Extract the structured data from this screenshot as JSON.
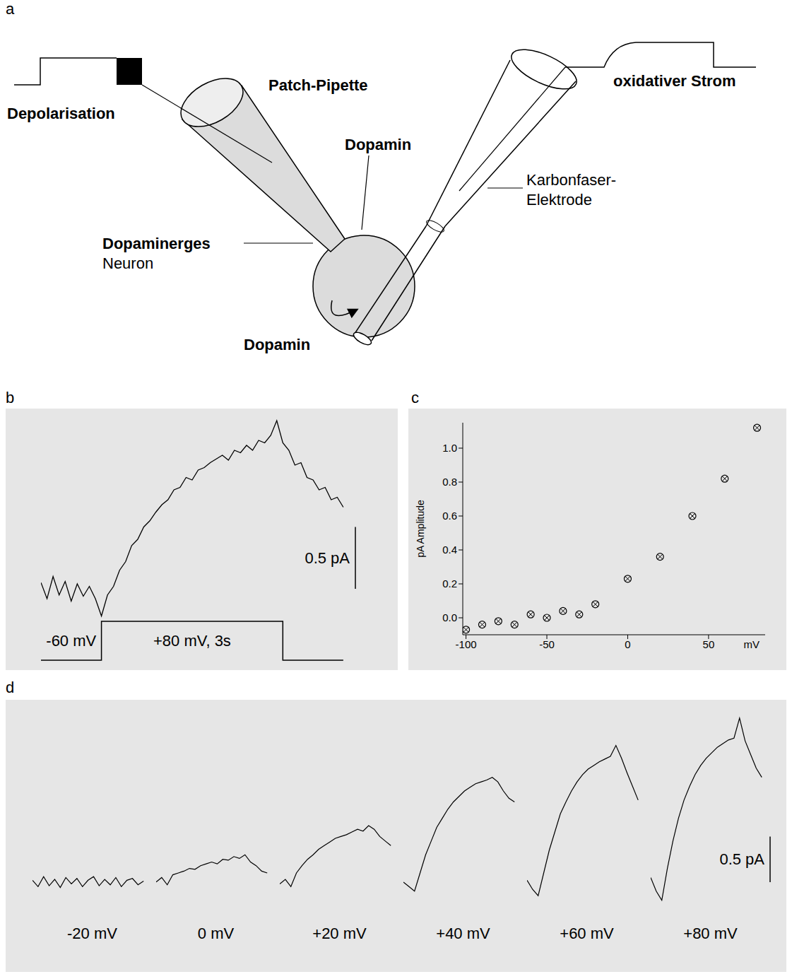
{
  "panel_labels": [
    "a",
    "b",
    "c",
    "d"
  ],
  "diagram": {
    "depolarisation": "Depolarisation",
    "patch_pipette": "Patch-Pipette",
    "dopamine_inside": "Dopamin",
    "neuron": [
      "Dopaminerges",
      "Neuron"
    ],
    "dopamine_released": "Dopamin",
    "oxidative_current": "oxidativer Strom",
    "carbon_electrode": [
      "Karbonfaser-",
      "Elektrode"
    ]
  },
  "chart_data": [
    {
      "type": "line",
      "tick_labels": false,
      "grid": false,
      "xlim": [
        0,
        5.2
      ],
      "ylim": [
        -0.6,
        1.4
      ],
      "y2lim": [
        -70,
        820
      ],
      "series": [
        {
          "color": "#000000",
          "x": [
            0,
            0.1,
            0.2,
            0.3,
            0.4,
            0.5,
            0.6,
            0.7,
            0.8,
            0.9,
            1.0,
            1.1,
            1.2,
            1.3,
            1.4,
            1.5,
            1.6,
            1.7,
            1.8,
            1.9,
            2.0,
            2.1,
            2.2,
            2.3,
            2.4,
            2.5,
            2.6,
            2.7,
            2.8,
            2.9,
            3.0,
            3.1,
            3.2,
            3.3,
            3.4,
            3.5,
            3.6,
            3.7,
            3.8,
            3.9,
            4.0,
            4.1,
            4.2,
            4.3,
            4.4,
            4.5,
            4.6,
            4.7,
            4.8,
            4.9,
            5.0
          ],
          "values": [
            0.05,
            -0.08,
            0.1,
            -0.05,
            0.06,
            -0.1,
            0.04,
            -0.06,
            0.02,
            -0.08,
            -0.22,
            -0.05,
            0.02,
            0.15,
            0.22,
            0.35,
            0.4,
            0.5,
            0.55,
            0.62,
            0.68,
            0.72,
            0.8,
            0.82,
            0.9,
            0.88,
            0.96,
            0.98,
            1.02,
            1.05,
            1.08,
            1.04,
            1.12,
            1.1,
            1.16,
            1.12,
            1.2,
            1.18,
            1.24,
            1.36,
            1.18,
            1.12,
            1.0,
            1.02,
            0.9,
            0.88,
            0.8,
            0.82,
            0.72,
            0.74,
            0.66
          ]
        },
        {
          "color": "#000000",
          "axis": "y2",
          "x": [
            0,
            1,
            1,
            4,
            4,
            5
          ],
          "values": [
            -60,
            -60,
            80,
            80,
            -60,
            -60
          ],
          "step_labels": [
            "-60 mV",
            "+80 mV, 3s"
          ]
        }
      ],
      "scale_bar": {
        "value": 0.5,
        "label": "0.5 pA"
      }
    },
    {
      "type": "scatter",
      "marker": "circle_x",
      "color": "#000000",
      "grid": false,
      "y_label": "pA Amplitude",
      "x_label": "mV",
      "x": [
        -100,
        -90,
        -80,
        -70,
        -60,
        -50,
        -40,
        -30,
        -20,
        0,
        20,
        40,
        60,
        80
      ],
      "values": [
        -0.07,
        -0.04,
        -0.02,
        -0.04,
        0.02,
        0.0,
        0.04,
        0.02,
        0.08,
        0.23,
        0.36,
        0.6,
        0.82,
        1.12
      ],
      "xlim": [
        -102,
        85
      ],
      "xticks": [
        -100,
        -50,
        0,
        50
      ],
      "ylim": [
        -0.1,
        1.15
      ],
      "yticks": [
        {
          "value": 0,
          "label": "0.0"
        },
        0.2,
        0.4,
        0.6,
        0.8,
        {
          "value": 1,
          "label": "1.0"
        }
      ]
    },
    {
      "type": "line",
      "tick_labels": false,
      "grid": false,
      "x": [
        0,
        0.2,
        0.4,
        0.6,
        0.8,
        1.0,
        1.2,
        1.4,
        1.6,
        1.8,
        2.0,
        2.2,
        2.4,
        2.6,
        2.8,
        3.0,
        3.2,
        3.4,
        3.6,
        3.8,
        4.0
      ],
      "xlim": [
        0,
        4.3
      ],
      "ylim": [
        -0.35,
        1.9
      ],
      "series": [
        {
          "name": "-20 mV",
          "color": "#000000",
          "values": [
            0.02,
            -0.05,
            0.06,
            -0.04,
            0.03,
            -0.06,
            0.05,
            -0.02,
            0.04,
            -0.05,
            0.02,
            0.06,
            -0.04,
            0.03,
            -0.03,
            0.05,
            -0.05,
            0.02,
            0.04,
            -0.03,
            0.01
          ]
        },
        {
          "name": "0 mV",
          "color": "#000000",
          "values": [
            0.0,
            0.05,
            -0.03,
            0.08,
            0.1,
            0.12,
            0.15,
            0.14,
            0.18,
            0.2,
            0.22,
            0.2,
            0.25,
            0.24,
            0.28,
            0.26,
            0.3,
            0.22,
            0.18,
            0.12,
            0.1
          ]
        },
        {
          "name": "+20 mV",
          "color": "#000000",
          "values": [
            -0.02,
            0.03,
            -0.05,
            0.1,
            0.18,
            0.25,
            0.3,
            0.36,
            0.4,
            0.44,
            0.48,
            0.5,
            0.52,
            0.55,
            0.58,
            0.56,
            0.62,
            0.58,
            0.5,
            0.45,
            0.4
          ]
        },
        {
          "name": "+40 mV",
          "color": "#000000",
          "values": [
            0.0,
            -0.05,
            -0.1,
            0.1,
            0.3,
            0.45,
            0.6,
            0.7,
            0.8,
            0.88,
            0.94,
            1.0,
            1.04,
            1.08,
            1.1,
            1.12,
            1.15,
            1.1,
            1.0,
            0.92,
            0.88
          ]
        },
        {
          "name": "+60 mV",
          "color": "#000000",
          "values": [
            0.02,
            -0.08,
            -0.15,
            0.1,
            0.35,
            0.55,
            0.75,
            0.88,
            1.0,
            1.1,
            1.18,
            1.24,
            1.28,
            1.32,
            1.35,
            1.38,
            1.5,
            1.36,
            1.2,
            1.05,
            0.9
          ]
        },
        {
          "name": "+80 mV",
          "color": "#000000",
          "values": [
            0.05,
            -0.1,
            -0.2,
            0.15,
            0.45,
            0.7,
            0.9,
            1.05,
            1.18,
            1.28,
            1.36,
            1.42,
            1.48,
            1.52,
            1.56,
            1.58,
            1.8,
            1.55,
            1.4,
            1.25,
            1.15
          ]
        }
      ],
      "scale_bar": {
        "value": 0.5,
        "label": "0.5 pA"
      }
    }
  ]
}
